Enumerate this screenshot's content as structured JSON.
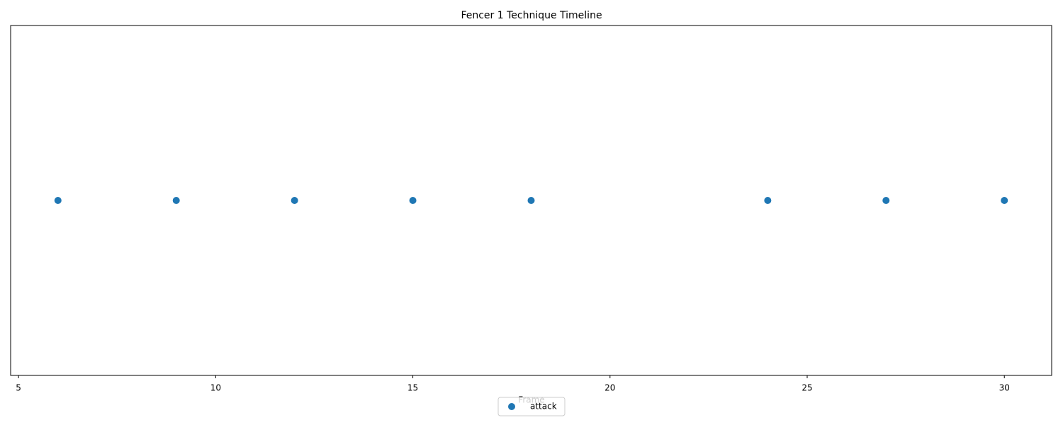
{
  "chart_data": {
    "type": "scatter",
    "title": "Fencer 1 Technique Timeline",
    "x_label": "Frame",
    "series": [
      {
        "name": "attack",
        "color": "#1f77b4",
        "x": [
          6,
          9,
          12,
          15,
          18,
          24,
          27,
          30
        ]
      }
    ],
    "xlim": [
      4.8,
      31.2
    ],
    "xticks": [
      5,
      10,
      15,
      20,
      25,
      30
    ],
    "legend": "lower center"
  }
}
